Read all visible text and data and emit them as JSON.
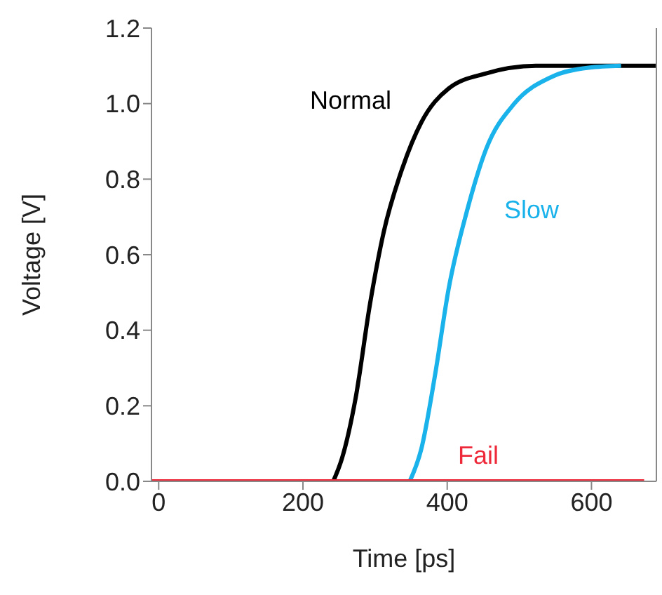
{
  "chart_data": {
    "type": "line",
    "xlabel": "Time [ps]",
    "ylabel": "Voltage [V]",
    "xlim": [
      -10,
      690
    ],
    "xticks": [
      0,
      200,
      400,
      600
    ],
    "ylim": [
      0,
      1.2
    ],
    "yticks": [
      {
        "value": 0,
        "label": "0.0"
      },
      0.2,
      0.4,
      0.6,
      0.8,
      {
        "value": 1,
        "label": "1.0"
      },
      1.2
    ],
    "grid": false,
    "legend": false,
    "marker": "none",
    "line_style": "solid",
    "series": [
      {
        "name": "Normal",
        "color": "#000000",
        "x": [
          242,
          254,
          273,
          293,
          312,
          338,
          364,
          402,
          454,
          525,
          689
        ],
        "values": [
          0,
          0.06,
          0.22,
          0.47,
          0.66,
          0.83,
          0.95,
          1.04,
          1.08,
          1.1,
          1.1
        ]
      },
      {
        "name": "Slow",
        "color": "#1ab2ea",
        "x": [
          348,
          364,
          383,
          402,
          428,
          454,
          493,
          544,
          596,
          641
        ],
        "values": [
          0,
          0.085,
          0.28,
          0.51,
          0.72,
          0.88,
          1.0,
          1.07,
          1.095,
          1.1
        ]
      },
      {
        "name": "Fail",
        "color": "#ee2a3a",
        "x": [
          -10,
          673
        ],
        "values": [
          0,
          0
        ]
      }
    ]
  }
}
